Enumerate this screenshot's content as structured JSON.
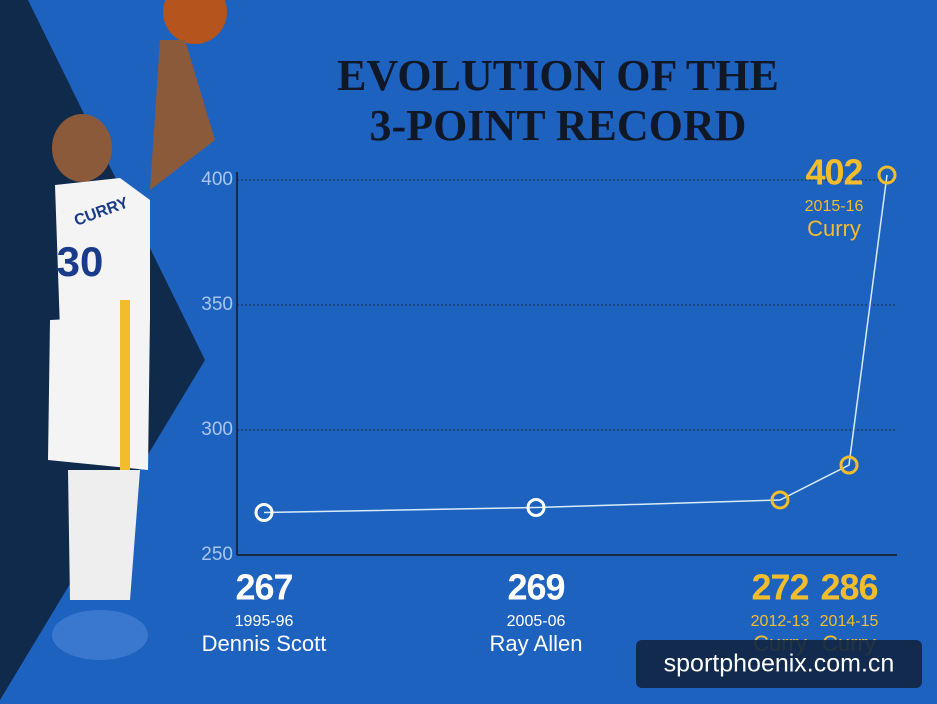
{
  "chart_data": {
    "type": "line",
    "title_lines": [
      "EVOLUTION OF THE",
      "3-POINT RECORD"
    ],
    "categories": [
      "1995-96",
      "2005-06",
      "2012-13",
      "2014-15",
      "2015-16"
    ],
    "player_names": [
      "Dennis Scott",
      "Ray Allen",
      "Curry",
      "Curry",
      "Curry"
    ],
    "values": [
      267,
      269,
      272,
      286,
      402
    ],
    "label_colors": [
      "#ffffff",
      "#ffffff",
      "#f2bd2c",
      "#f2bd2c",
      "#f2bd2c"
    ],
    "line_color": "#d8ecf8",
    "ylim": [
      250,
      400
    ],
    "yticks": [
      250,
      300,
      350,
      400
    ],
    "grid": true
  },
  "photo": {
    "jersey_name": "CURRY",
    "jersey_number": "30"
  },
  "watermark": "sportphoenix.com.cn"
}
